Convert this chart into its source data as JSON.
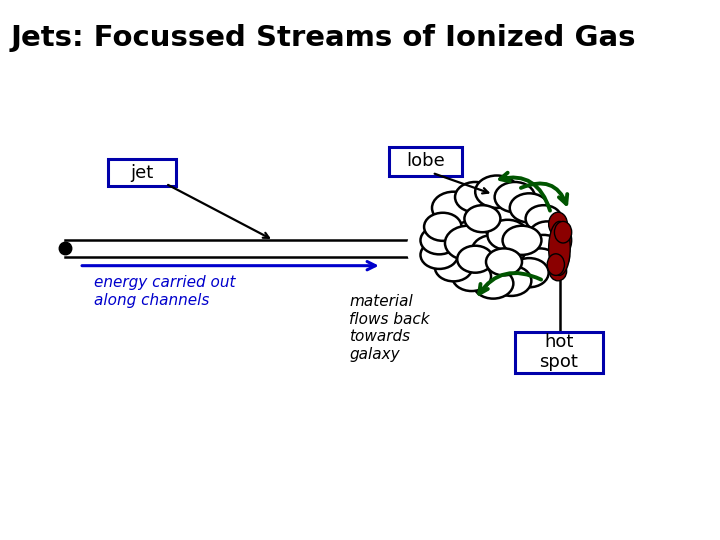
{
  "title": "Jets: Focussed Streams of Ionized Gas",
  "title_fontsize": 21,
  "title_fontweight": "bold",
  "bg_color": "#ffffff",
  "label_jet": "jet",
  "label_lobe": "lobe",
  "label_energy": "energy carried out\nalong channels",
  "label_material": "material\nflows back\ntowards\ngalaxy",
  "label_hotspot": "hot\nspot",
  "box_color": "#0000aa",
  "arrow_blue_color": "#0000cc",
  "arrow_green_color": "#005500",
  "lobe_cloud_color": "#ffffff",
  "lobe_cloud_edge": "#000000",
  "hotspot_color": "#8b0000",
  "fig_width": 7.2,
  "fig_height": 5.4,
  "xlim": [
    0,
    10
  ],
  "ylim": [
    0,
    10
  ]
}
